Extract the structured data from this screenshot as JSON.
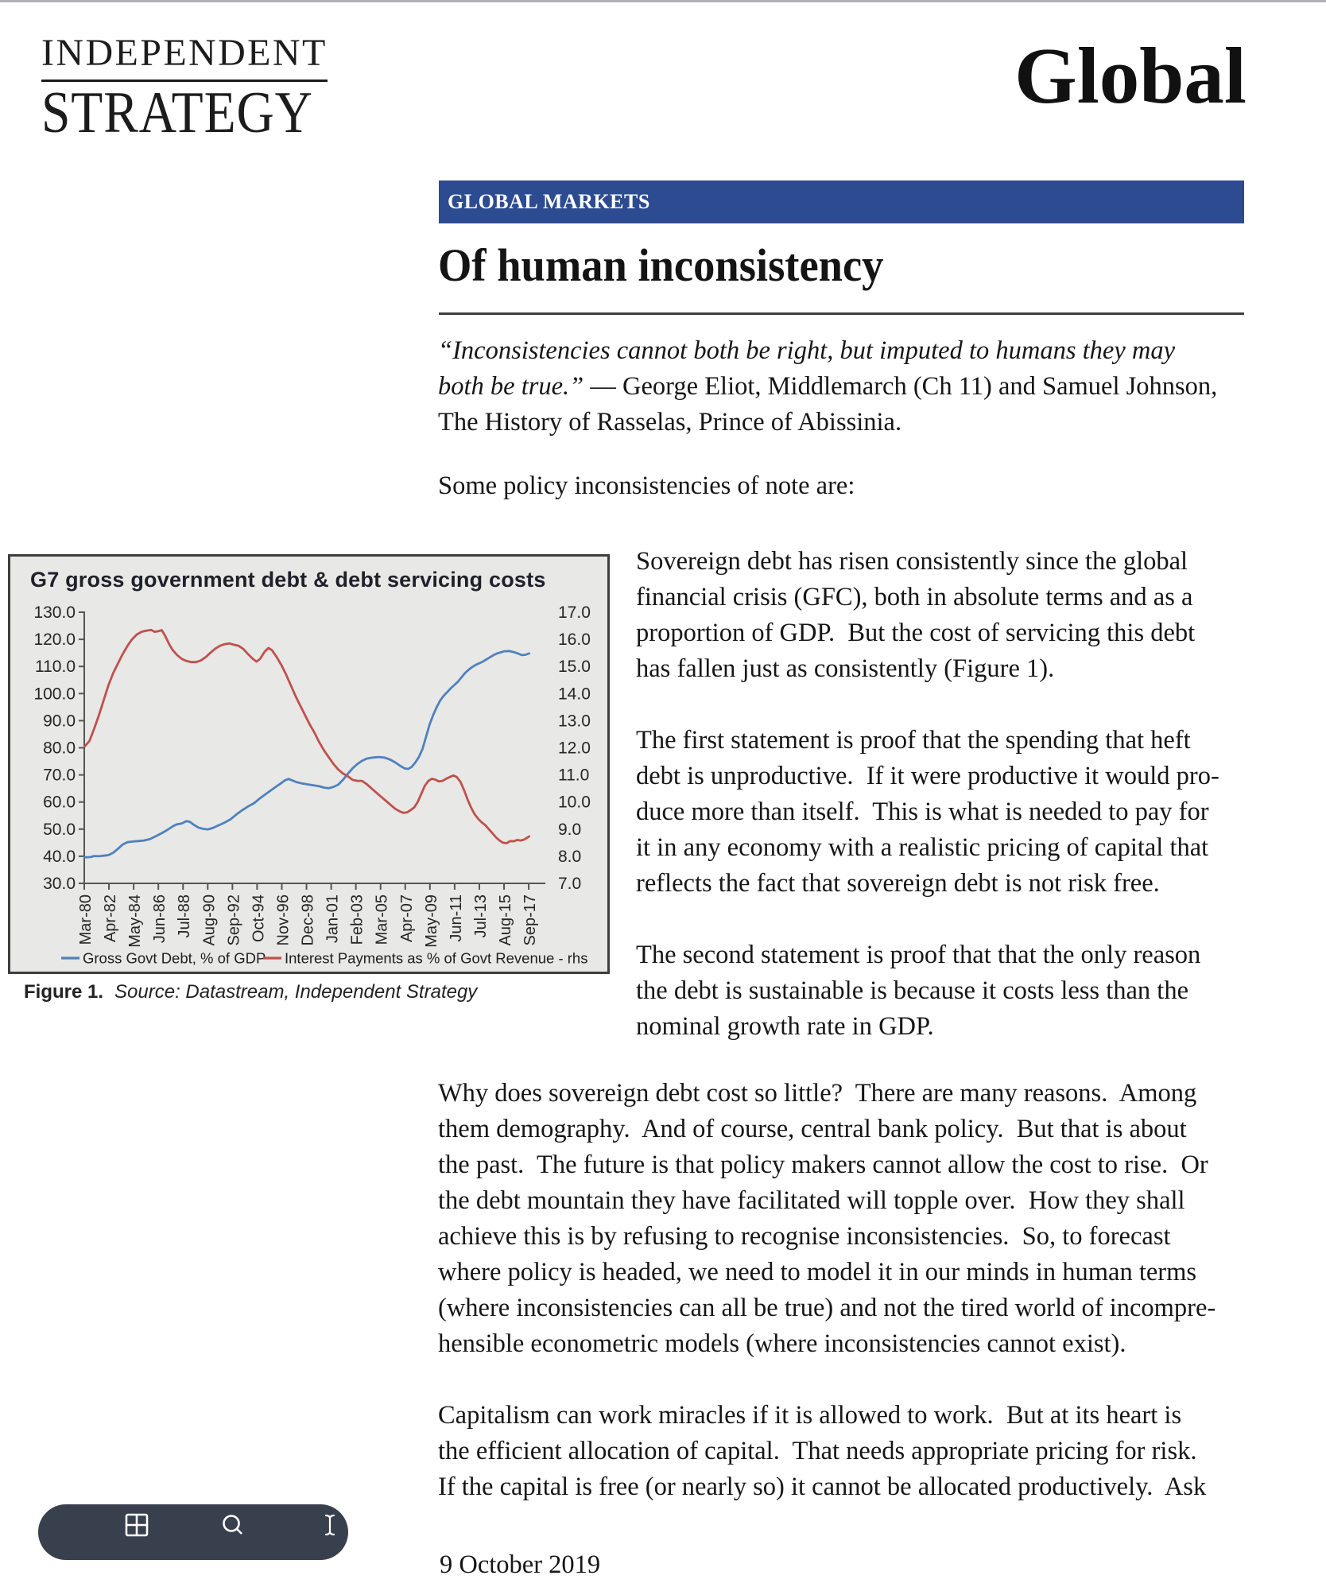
{
  "masthead": {
    "brand_line1": "INDEPENDENT",
    "brand_line2": "STRATEGY",
    "publication": "Global"
  },
  "banner": {
    "label": "GLOBAL MARKETS"
  },
  "article": {
    "title": "Of human inconsistency",
    "quote_lines": [
      [
        {
          "t": "“Inconsistencies cannot both be right, but imputed to humans they may",
          "i": true
        }
      ],
      [
        {
          "t": "both be true.”",
          "i": true
        },
        {
          "t": " — George Eliot, Middlemarch (Ch 11) and Samuel Johnson,",
          "i": false
        }
      ],
      [
        {
          "t": "The History of Rasselas, Prince of Abissinia.",
          "i": false
        }
      ]
    ],
    "intro_line": "Some policy inconsistencies of note are:",
    "col_paragraphs": [
      {
        "lines": [
          "Sovereign debt has risen consistently since the global",
          "financial crisis (GFC), both in absolute terms and as a",
          "proportion of GDP.  But the cost of servicing this debt",
          "has fallen just as consistently (Figure 1)."
        ]
      },
      {
        "lines": [
          "The first statement is proof that the spending that heft",
          "debt is unproductive.  If it were productive it would pro-",
          "duce more than itself.  This is what is needed to pay for",
          "it in any economy with a realistic pricing of capital that",
          "reflects the fact that sovereign debt is not risk free."
        ]
      },
      {
        "lines": [
          "The second statement is proof that that the only reason",
          "the debt is sustainable is because it costs less than the",
          "nominal growth rate in GDP."
        ]
      }
    ],
    "full_paragraphs": [
      {
        "lines": [
          "Why does sovereign debt cost so little?  There are many reasons.  Among",
          "them demography.  And of course, central bank policy.  But that is about",
          "the past.  The future is that policy makers cannot allow the cost to rise.  Or",
          "the debt mountain they have facilitated will topple over.  How they shall",
          "achieve this is by refusing to recognise inconsistencies.  So, to forecast",
          "where policy is headed, we need to model it in our minds in human terms",
          "(where inconsistencies can all be true) and not the tired world of incompre-",
          "hensible econometric models (where inconsistencies cannot exist)."
        ]
      },
      {
        "lines": [
          "Capitalism can work miracles if it is allowed to work.  But at its heart is",
          "the efficient allocation of capital.  That needs appropriate pricing for risk.",
          "If the capital is free (or nearly so) it cannot be allocated productively.  Ask"
        ]
      }
    ],
    "date": "9 October 2019"
  },
  "figure": {
    "caption_label": "Figure 1.",
    "caption_source": "Source: Datastream, Independent Strategy"
  },
  "chart_data": {
    "type": "line",
    "title": "G7 gross government debt & debt servicing costs",
    "x_labels": [
      "Mar-80",
      "Apr-82",
      "May-84",
      "Jun-86",
      "Jul-88",
      "Aug-90",
      "Sep-92",
      "Oct-94",
      "Nov-96",
      "Dec-98",
      "Jan-01",
      "Feb-03",
      "Mar-05",
      "Apr-07",
      "May-09",
      "Jun-11",
      "Jul-13",
      "Aug-15",
      "Sep-17"
    ],
    "left_axis": {
      "min": 30,
      "max": 130,
      "step": 10,
      "format": ".0"
    },
    "right_axis": {
      "min": 7,
      "max": 17,
      "step": 1,
      "format": ".0"
    },
    "grid": false,
    "legend_position": "bottom",
    "series": [
      {
        "name": "Gross Govt Debt, % of GDP",
        "axis": "left",
        "color": "#4f81bd",
        "points": [
          [
            1980.2,
            39.6
          ],
          [
            1980.7,
            39.7
          ],
          [
            1981.0,
            40.1
          ],
          [
            1981.4,
            40.0
          ],
          [
            1981.8,
            40.2
          ],
          [
            1982.2,
            40.4
          ],
          [
            1982.6,
            41.3
          ],
          [
            1983.0,
            42.7
          ],
          [
            1983.4,
            44.3
          ],
          [
            1983.8,
            45.2
          ],
          [
            1984.2,
            45.4
          ],
          [
            1984.7,
            45.6
          ],
          [
            1985.2,
            45.8
          ],
          [
            1985.7,
            46.3
          ],
          [
            1986.2,
            47.4
          ],
          [
            1986.7,
            48.5
          ],
          [
            1987.2,
            49.8
          ],
          [
            1987.7,
            51.2
          ],
          [
            1988.0,
            51.8
          ],
          [
            1988.4,
            52.1
          ],
          [
            1988.8,
            53.0
          ],
          [
            1989.1,
            52.6
          ],
          [
            1989.4,
            51.6
          ],
          [
            1989.8,
            50.6
          ],
          [
            1990.2,
            50.1
          ],
          [
            1990.6,
            49.9
          ],
          [
            1991.0,
            50.4
          ],
          [
            1991.5,
            51.4
          ],
          [
            1992.0,
            52.4
          ],
          [
            1992.5,
            53.6
          ],
          [
            1993.0,
            55.4
          ],
          [
            1993.5,
            57.0
          ],
          [
            1994.0,
            58.4
          ],
          [
            1994.5,
            59.6
          ],
          [
            1995.0,
            61.4
          ],
          [
            1995.5,
            63.0
          ],
          [
            1996.0,
            64.6
          ],
          [
            1996.4,
            65.8
          ],
          [
            1996.8,
            67.0
          ],
          [
            1997.1,
            68.0
          ],
          [
            1997.4,
            68.5
          ],
          [
            1997.7,
            68.0
          ],
          [
            1998.1,
            67.3
          ],
          [
            1998.5,
            66.9
          ],
          [
            1999.0,
            66.5
          ],
          [
            1999.5,
            66.2
          ],
          [
            2000.0,
            65.8
          ],
          [
            2000.4,
            65.3
          ],
          [
            2000.8,
            65.1
          ],
          [
            2001.2,
            65.6
          ],
          [
            2001.6,
            66.4
          ],
          [
            2002.0,
            68.2
          ],
          [
            2002.4,
            70.4
          ],
          [
            2002.8,
            72.4
          ],
          [
            2003.2,
            74.0
          ],
          [
            2003.6,
            75.2
          ],
          [
            2004.0,
            76.0
          ],
          [
            2004.5,
            76.4
          ],
          [
            2005.0,
            76.6
          ],
          [
            2005.5,
            76.4
          ],
          [
            2006.0,
            75.6
          ],
          [
            2006.4,
            74.6
          ],
          [
            2006.8,
            73.4
          ],
          [
            2007.2,
            72.4
          ],
          [
            2007.5,
            72.2
          ],
          [
            2007.8,
            73.0
          ],
          [
            2008.1,
            74.6
          ],
          [
            2008.4,
            76.6
          ],
          [
            2008.7,
            79.5
          ],
          [
            2009.0,
            84.0
          ],
          [
            2009.3,
            88.5
          ],
          [
            2009.6,
            92.0
          ],
          [
            2009.9,
            95.0
          ],
          [
            2010.2,
            97.5
          ],
          [
            2010.5,
            99.2
          ],
          [
            2010.8,
            100.6
          ],
          [
            2011.1,
            102.0
          ],
          [
            2011.4,
            103.2
          ],
          [
            2011.7,
            104.4
          ],
          [
            2012.0,
            106.0
          ],
          [
            2012.3,
            107.6
          ],
          [
            2012.6,
            108.8
          ],
          [
            2012.9,
            109.8
          ],
          [
            2013.2,
            110.6
          ],
          [
            2013.5,
            111.2
          ],
          [
            2013.8,
            111.8
          ],
          [
            2014.1,
            112.6
          ],
          [
            2014.4,
            113.4
          ],
          [
            2014.7,
            114.2
          ],
          [
            2015.0,
            114.8
          ],
          [
            2015.3,
            115.2
          ],
          [
            2015.6,
            115.6
          ],
          [
            2016.0,
            115.7
          ],
          [
            2016.4,
            115.3
          ],
          [
            2016.8,
            114.7
          ],
          [
            2017.1,
            114.2
          ],
          [
            2017.4,
            114.3
          ],
          [
            2017.7,
            114.8
          ]
        ]
      },
      {
        "name": "Interest Payments as % of Govt Revenue - rhs",
        "axis": "right",
        "color": "#c0504d",
        "points": [
          [
            1980.2,
            12.05
          ],
          [
            1980.6,
            12.25
          ],
          [
            1981.0,
            12.7
          ],
          [
            1981.4,
            13.2
          ],
          [
            1981.8,
            13.75
          ],
          [
            1982.2,
            14.3
          ],
          [
            1982.6,
            14.75
          ],
          [
            1983.0,
            15.1
          ],
          [
            1983.4,
            15.45
          ],
          [
            1983.8,
            15.75
          ],
          [
            1984.2,
            16.0
          ],
          [
            1984.6,
            16.18
          ],
          [
            1985.0,
            16.28
          ],
          [
            1985.4,
            16.32
          ],
          [
            1985.8,
            16.35
          ],
          [
            1986.1,
            16.28
          ],
          [
            1986.4,
            16.3
          ],
          [
            1986.7,
            16.34
          ],
          [
            1987.0,
            16.12
          ],
          [
            1987.3,
            15.85
          ],
          [
            1987.6,
            15.62
          ],
          [
            1988.0,
            15.42
          ],
          [
            1988.4,
            15.28
          ],
          [
            1988.8,
            15.2
          ],
          [
            1989.2,
            15.16
          ],
          [
            1989.6,
            15.16
          ],
          [
            1990.0,
            15.22
          ],
          [
            1990.4,
            15.34
          ],
          [
            1990.8,
            15.5
          ],
          [
            1991.2,
            15.65
          ],
          [
            1991.6,
            15.76
          ],
          [
            1992.0,
            15.82
          ],
          [
            1992.4,
            15.85
          ],
          [
            1992.8,
            15.8
          ],
          [
            1993.2,
            15.76
          ],
          [
            1993.6,
            15.64
          ],
          [
            1994.0,
            15.45
          ],
          [
            1994.4,
            15.28
          ],
          [
            1994.7,
            15.18
          ],
          [
            1995.0,
            15.28
          ],
          [
            1995.4,
            15.55
          ],
          [
            1995.7,
            15.68
          ],
          [
            1996.0,
            15.6
          ],
          [
            1996.4,
            15.35
          ],
          [
            1996.8,
            15.05
          ],
          [
            1997.2,
            14.7
          ],
          [
            1997.6,
            14.3
          ],
          [
            1998.0,
            13.9
          ],
          [
            1998.4,
            13.55
          ],
          [
            1998.8,
            13.2
          ],
          [
            1999.2,
            12.85
          ],
          [
            1999.6,
            12.55
          ],
          [
            2000.0,
            12.2
          ],
          [
            2000.4,
            11.9
          ],
          [
            2000.8,
            11.65
          ],
          [
            2001.2,
            11.4
          ],
          [
            2001.6,
            11.2
          ],
          [
            2002.0,
            11.05
          ],
          [
            2002.4,
            10.95
          ],
          [
            2002.8,
            10.82
          ],
          [
            2003.2,
            10.78
          ],
          [
            2003.6,
            10.78
          ],
          [
            2004.0,
            10.66
          ],
          [
            2004.4,
            10.5
          ],
          [
            2004.8,
            10.35
          ],
          [
            2005.2,
            10.2
          ],
          [
            2005.6,
            10.05
          ],
          [
            2006.0,
            9.9
          ],
          [
            2006.4,
            9.75
          ],
          [
            2006.8,
            9.65
          ],
          [
            2007.1,
            9.6
          ],
          [
            2007.4,
            9.62
          ],
          [
            2007.7,
            9.7
          ],
          [
            2008.0,
            9.8
          ],
          [
            2008.3,
            10.0
          ],
          [
            2008.6,
            10.3
          ],
          [
            2008.9,
            10.6
          ],
          [
            2009.2,
            10.78
          ],
          [
            2009.5,
            10.86
          ],
          [
            2009.8,
            10.82
          ],
          [
            2010.1,
            10.76
          ],
          [
            2010.4,
            10.78
          ],
          [
            2010.7,
            10.86
          ],
          [
            2011.0,
            10.92
          ],
          [
            2011.3,
            10.98
          ],
          [
            2011.6,
            10.92
          ],
          [
            2011.9,
            10.75
          ],
          [
            2012.2,
            10.45
          ],
          [
            2012.5,
            10.1
          ],
          [
            2012.8,
            9.8
          ],
          [
            2013.1,
            9.55
          ],
          [
            2013.4,
            9.38
          ],
          [
            2013.7,
            9.25
          ],
          [
            2014.0,
            9.15
          ],
          [
            2014.3,
            9.0
          ],
          [
            2014.6,
            8.85
          ],
          [
            2014.9,
            8.7
          ],
          [
            2015.2,
            8.58
          ],
          [
            2015.5,
            8.5
          ],
          [
            2015.8,
            8.48
          ],
          [
            2016.1,
            8.56
          ],
          [
            2016.4,
            8.55
          ],
          [
            2016.7,
            8.6
          ],
          [
            2017.0,
            8.58
          ],
          [
            2017.3,
            8.62
          ],
          [
            2017.7,
            8.73
          ]
        ]
      }
    ]
  },
  "toolbar": {
    "background": "#39404d",
    "icons": [
      "grid-view",
      "search",
      "text-cursor"
    ]
  }
}
